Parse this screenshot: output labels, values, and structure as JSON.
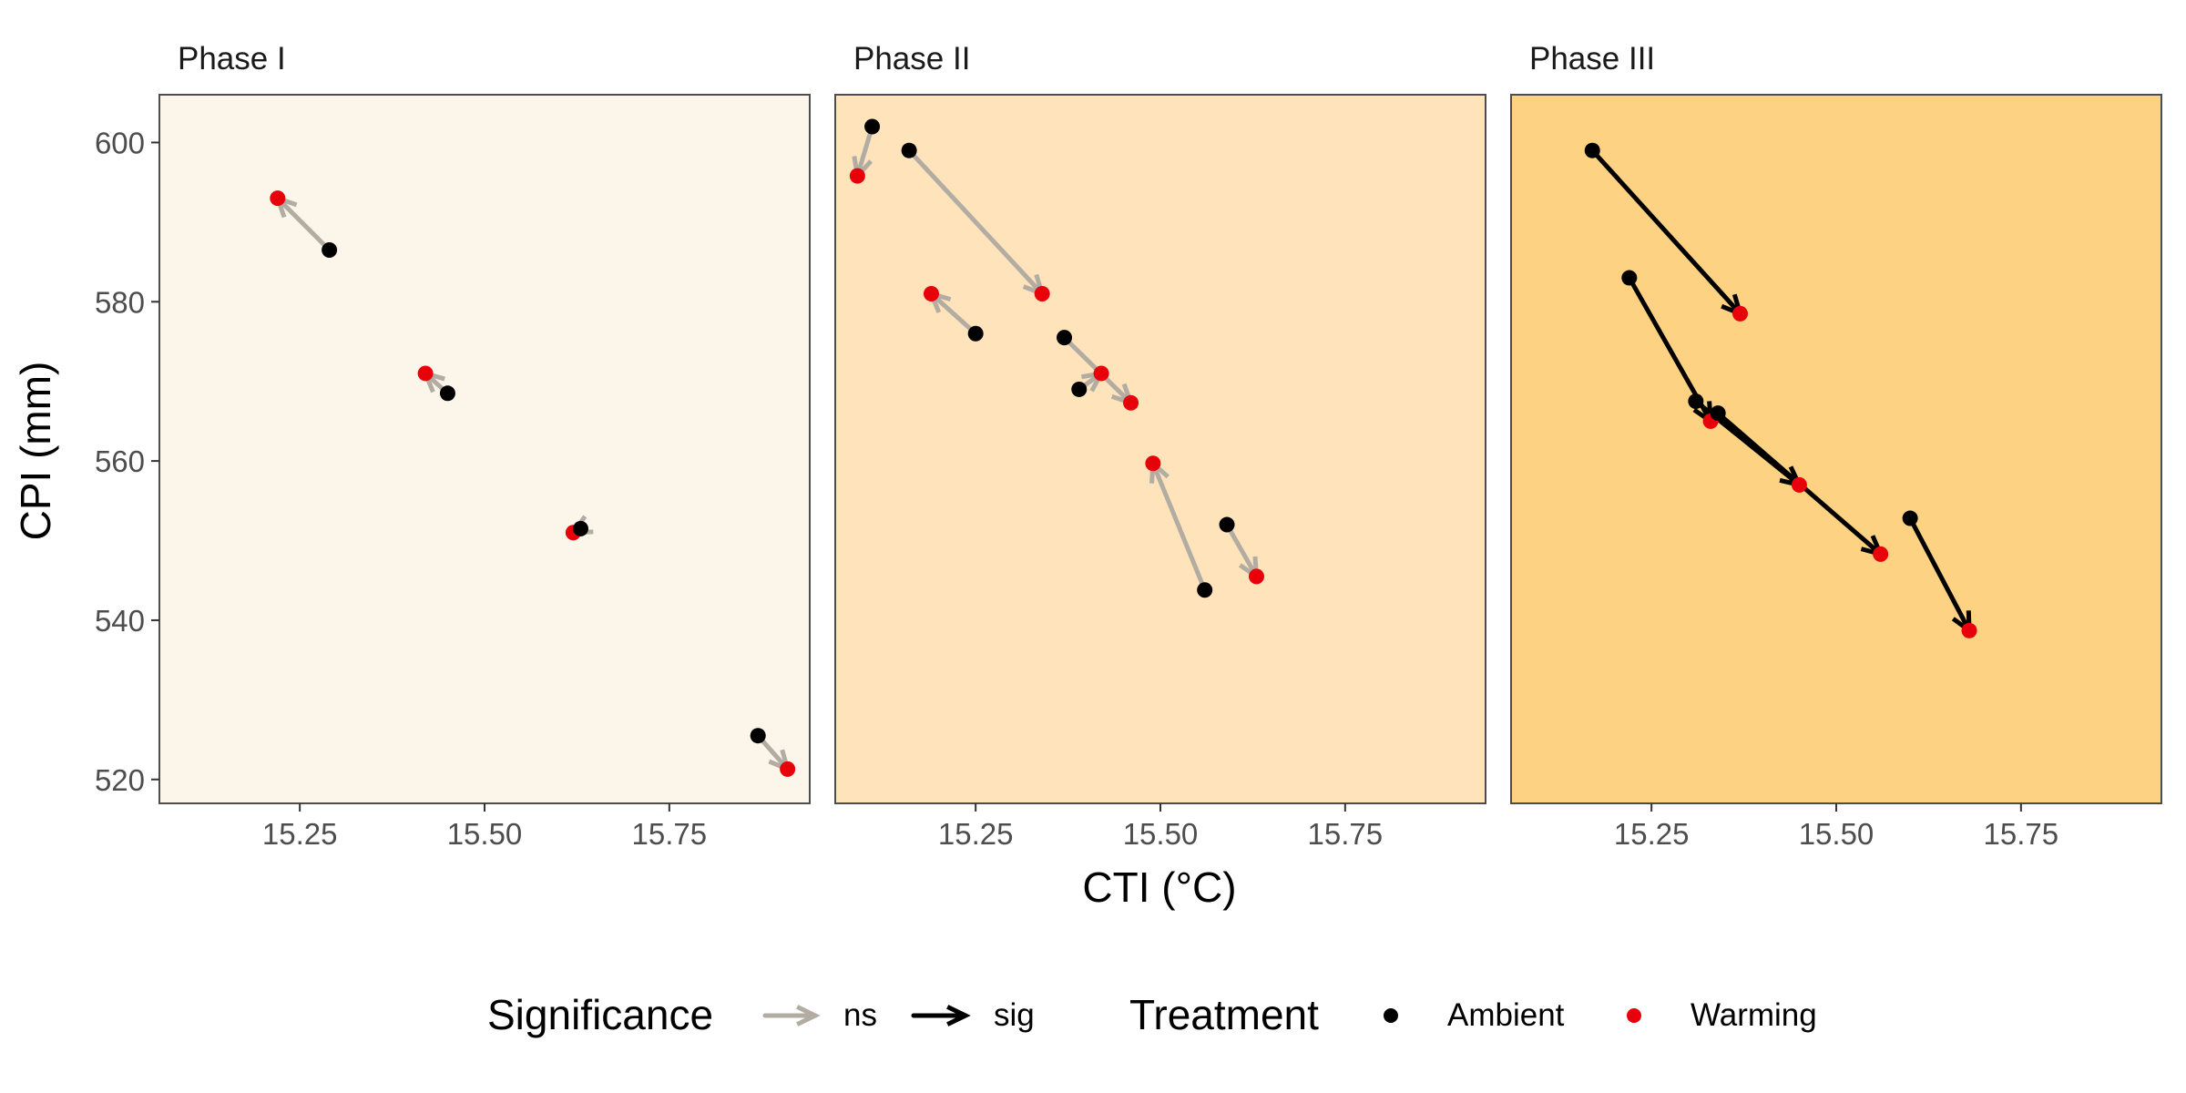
{
  "chart_data": {
    "type": "scatter",
    "xlabel": "CTI (°C)",
    "ylabel": "CPI (mm)",
    "xlim": [
      15.06,
      15.94
    ],
    "ylim": [
      517,
      606
    ],
    "x_ticks": [
      15.25,
      15.5,
      15.75
    ],
    "x_tick_labels": [
      "15.25",
      "15.50",
      "15.75"
    ],
    "y_ticks": [
      520,
      540,
      560,
      580,
      600
    ],
    "y_tick_labels": [
      "520",
      "540",
      "560",
      "580",
      "600"
    ],
    "grid": false,
    "legend_position": "bottom",
    "colors": {
      "Ambient": "#000000",
      "Warming": "#e8000b",
      "ns": "#b3aca3",
      "sig": "#000000"
    },
    "legend": {
      "significance_title": "Significance",
      "significance_items": [
        "ns",
        "sig"
      ],
      "treatment_title": "Treatment",
      "treatment_items": [
        "Ambient",
        "Warming"
      ]
    },
    "panels": [
      {
        "title": "Phase I",
        "background": "#fcf5ea",
        "pairs": [
          {
            "ambient": [
              15.29,
              586.5
            ],
            "warming": [
              15.22,
              593.0
            ],
            "significance": "ns"
          },
          {
            "ambient": [
              15.45,
              568.5
            ],
            "warming": [
              15.42,
              571.0
            ],
            "significance": "ns"
          },
          {
            "ambient": [
              15.63,
              551.5
            ],
            "warming": [
              15.62,
              551.0
            ],
            "significance": "ns"
          },
          {
            "ambient": [
              15.87,
              525.5
            ],
            "warming": [
              15.91,
              521.3
            ],
            "significance": "ns"
          }
        ]
      },
      {
        "title": "Phase II",
        "background": "#fee3bb",
        "pairs": [
          {
            "ambient": [
              15.11,
              602.0
            ],
            "warming": [
              15.09,
              595.8
            ],
            "significance": "ns"
          },
          {
            "ambient": [
              15.16,
              599.0
            ],
            "warming": [
              15.34,
              581.0
            ],
            "significance": "ns"
          },
          {
            "ambient": [
              15.25,
              576.0
            ],
            "warming": [
              15.19,
              581.0
            ],
            "significance": "ns"
          },
          {
            "ambient": [
              15.37,
              575.5
            ],
            "warming": [
              15.46,
              567.3
            ],
            "significance": "ns"
          },
          {
            "ambient": [
              15.39,
              569.0
            ],
            "warming": [
              15.42,
              571.0
            ],
            "significance": "ns"
          },
          {
            "ambient": [
              15.56,
              543.8
            ],
            "warming": [
              15.49,
              559.7
            ],
            "significance": "ns"
          },
          {
            "ambient": [
              15.59,
              552.0
            ],
            "warming": [
              15.63,
              545.5
            ],
            "significance": "ns"
          }
        ]
      },
      {
        "title": "Phase III",
        "background": "#fdd283",
        "pairs": [
          {
            "ambient": [
              15.17,
              599.0
            ],
            "warming": [
              15.37,
              578.5
            ],
            "significance": "sig"
          },
          {
            "ambient": [
              15.22,
              583.0
            ],
            "warming": [
              15.33,
              565.0
            ],
            "significance": "sig"
          },
          {
            "ambient": [
              15.31,
              567.5
            ],
            "warming": [
              15.45,
              557.0
            ],
            "significance": "sig"
          },
          {
            "ambient": [
              15.34,
              566.0
            ],
            "warming": [
              15.56,
              548.3
            ],
            "significance": "sig"
          },
          {
            "ambient": [
              15.6,
              552.8
            ],
            "warming": [
              15.68,
              538.7
            ],
            "significance": "sig"
          }
        ]
      }
    ]
  }
}
